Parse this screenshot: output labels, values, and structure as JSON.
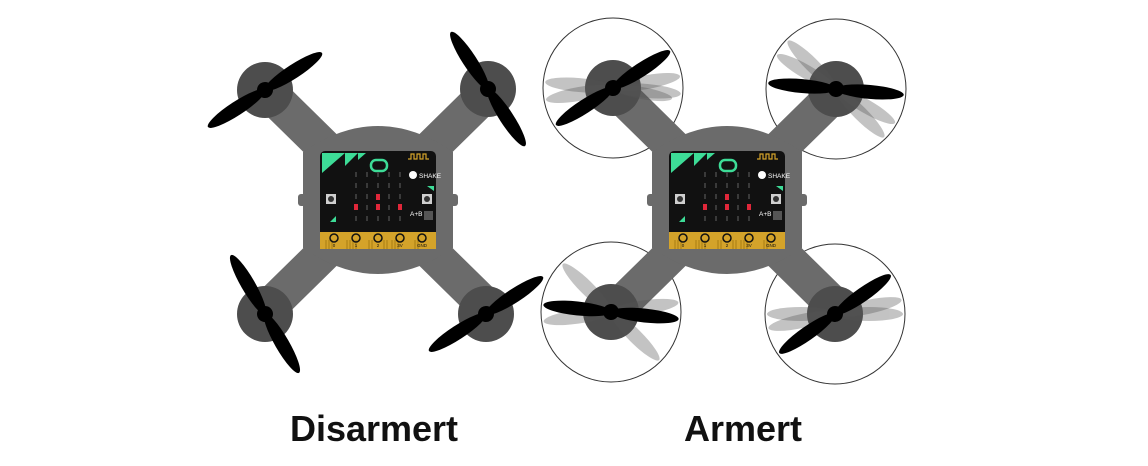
{
  "drones": [
    {
      "id": "disarmed",
      "caption": "Disarmert",
      "armed": false,
      "board": {
        "shake_label": "SHAKE",
        "ab_label": "A+B",
        "pins": [
          "0",
          "1",
          "2",
          "3V",
          "GND"
        ]
      }
    },
    {
      "id": "armed",
      "caption": "Armert",
      "armed": true,
      "board": {
        "shake_label": "SHAKE",
        "ab_label": "A+B",
        "pins": [
          "0",
          "1",
          "2",
          "3V",
          "GND"
        ]
      }
    }
  ],
  "colors": {
    "frame": "#6b6b6b",
    "motor_hub": "#4d4d4d",
    "propeller": "#000000",
    "propeller_blur": "#555555",
    "board": "#111111",
    "board_accent": "#3ddc97",
    "led_on": "#e0273a",
    "edge_connector": "#d4a32a",
    "rotor_circle": "#333333"
  }
}
